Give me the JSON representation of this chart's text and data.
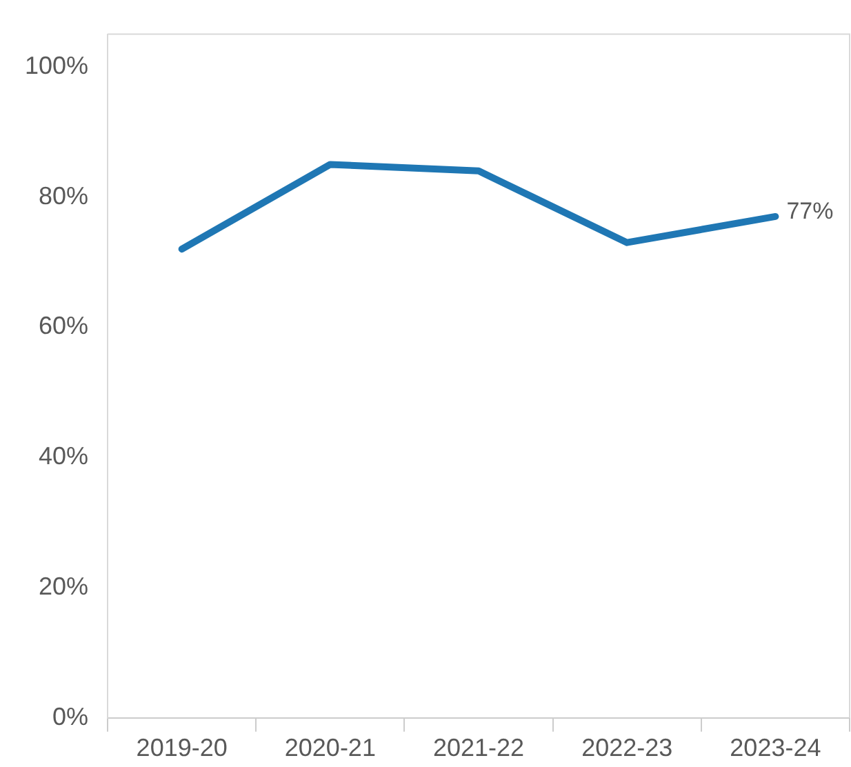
{
  "chart_data": {
    "type": "line",
    "categories": [
      "2019-20",
      "2020-21",
      "2021-22",
      "2022-23",
      "2023-24"
    ],
    "series": [
      {
        "color": "#1f77b4",
        "values": [
          72,
          85,
          84,
          73,
          77
        ],
        "value_labels": [
          null,
          null,
          null,
          null,
          "77%"
        ]
      }
    ],
    "ylim": [
      0,
      105
    ],
    "yticks": [
      {
        "value": 0,
        "label": "0%"
      },
      {
        "value": 20,
        "label": "20%"
      },
      {
        "value": 40,
        "label": "40%"
      },
      {
        "value": 60,
        "label": "60%"
      },
      {
        "value": 80,
        "label": "80%"
      },
      {
        "value": 100,
        "label": "100%"
      }
    ],
    "grid": false,
    "legend": false,
    "marker": "none",
    "line_style": "solid"
  }
}
